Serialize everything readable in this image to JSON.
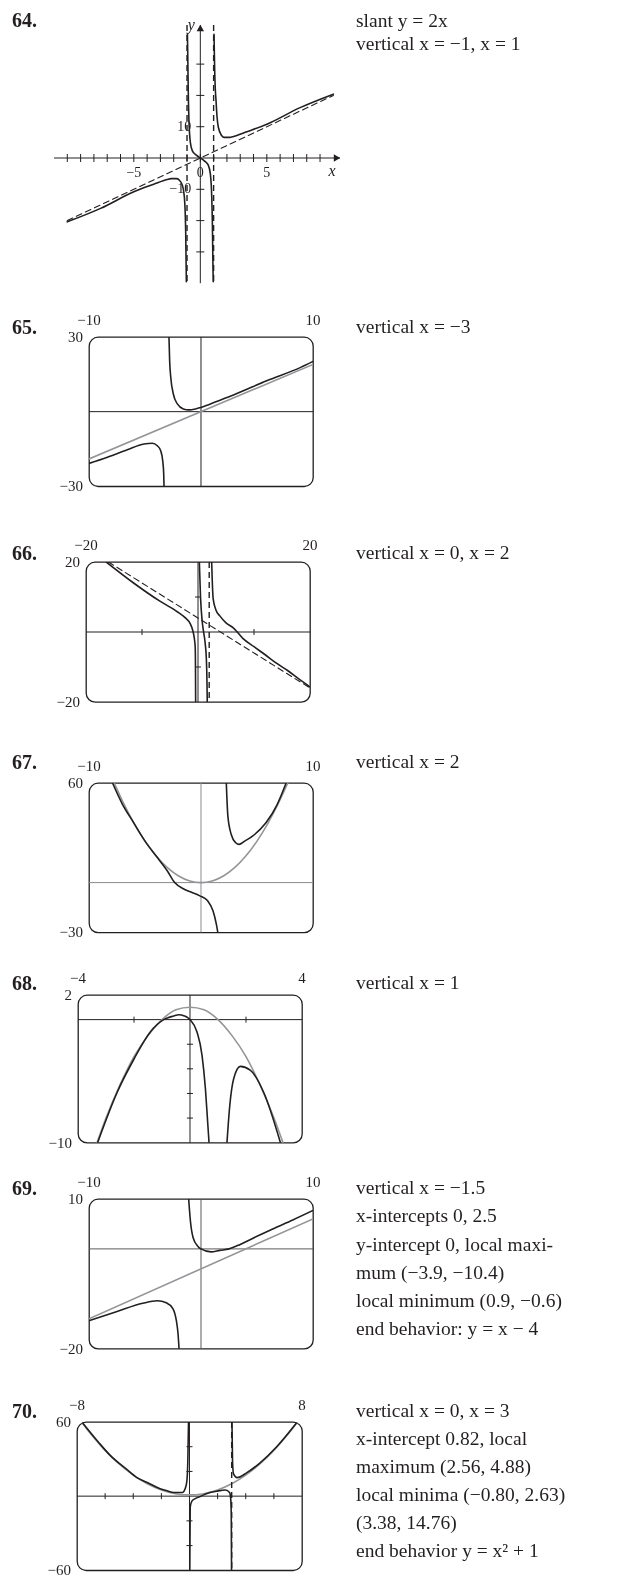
{
  "chart_data": [
    {
      "type": "line",
      "title": "64.",
      "xlabel": "x",
      "ylabel": "y",
      "annotations": [
        "slant y = 2x",
        "vertical x = −1, x = 1"
      ],
      "xlim": [
        -11,
        10.5
      ],
      "ylim": [
        -40,
        42.5
      ],
      "xticks": [
        {
          "value": -10,
          "label": null
        },
        {
          "value": -9,
          "label": null
        },
        {
          "value": -8,
          "label": null
        },
        {
          "value": -7,
          "label": null
        },
        {
          "value": -6,
          "label": null
        },
        -5,
        {
          "value": -4,
          "label": null
        },
        {
          "value": -3,
          "label": null
        },
        {
          "value": -2,
          "label": null
        },
        {
          "value": -1,
          "label": null
        },
        0,
        {
          "value": 1,
          "label": null
        },
        {
          "value": 2,
          "label": null
        },
        {
          "value": 3,
          "label": null
        },
        {
          "value": 4,
          "label": null
        },
        5,
        {
          "value": 6,
          "label": null
        },
        {
          "value": 7,
          "label": null
        },
        {
          "value": 8,
          "label": null
        },
        {
          "value": 9,
          "label": null
        }
      ],
      "yticks": [
        {
          "value": -30,
          "label": null
        },
        {
          "value": -20,
          "label": null
        },
        -10,
        10,
        {
          "value": 20,
          "label": null
        },
        {
          "value": 30,
          "label": null
        }
      ],
      "series": [
        {
          "color": "#231f20",
          "line_style": "dashed",
          "x": [
            -10,
            10
          ],
          "values": [
            -20,
            20
          ]
        },
        {
          "color": "#231f20",
          "x": [
            -10,
            -7.5,
            -5,
            -3.5,
            -2.5,
            -2.2,
            -1.8,
            -1.6,
            -1.35,
            -1.2,
            -1.1,
            -1.05
          ],
          "values": [
            -20.4,
            -16.1,
            -10.8,
            -8.4,
            -6.9,
            -6.6,
            -6.6,
            -7,
            -8.7,
            -12.4,
            -23.5,
            -39.5
          ]
        },
        {
          "color": "#231f20",
          "x": [
            -0.97,
            -0.95,
            -0.93,
            -0.91,
            -0.89,
            -0.86,
            -0.82,
            -0.75,
            -0.6,
            -0.3,
            0,
            0.3,
            0.6,
            0.75,
            0.82,
            0.86,
            0.89,
            0.91,
            0.93,
            0.95,
            0.97
          ],
          "values": [
            39.5,
            34.5,
            28.5,
            22,
            17.5,
            12.5,
            8.5,
            5,
            2.3,
            0.9,
            0,
            -0.9,
            -2.3,
            -5,
            -8.5,
            -12.5,
            -17.5,
            -22,
            -28.5,
            -34.5,
            -39.5
          ]
        },
        {
          "color": "#231f20",
          "x": [
            1.03,
            1.05,
            1.08,
            1.12,
            1.18,
            1.25,
            1.35,
            1.6,
            1.8,
            2.2,
            2.5,
            3.5,
            5,
            7.5,
            10
          ],
          "values": [
            39.5,
            34.5,
            28,
            22.5,
            18.4,
            13.5,
            9.9,
            7.2,
            6.6,
            6.6,
            6.9,
            8.4,
            10.8,
            16.1,
            20.4
          ]
        }
      ],
      "ref_lines": [
        {
          "axis": "x",
          "value": -1,
          "line_style": "dashed",
          "color": "#231f20"
        },
        {
          "axis": "x",
          "value": 1,
          "line_style": "dashed",
          "color": "#231f20"
        }
      ]
    },
    {
      "type": "line",
      "title": "65.",
      "annotations": [
        "vertical x = −3"
      ],
      "xlim": [
        -10,
        10
      ],
      "ylim": [
        -30,
        30
      ],
      "xticks": [
        -10,
        10
      ],
      "yticks": [
        -30,
        30
      ],
      "series": [
        {
          "color": "#939598",
          "x": [
            -10,
            10
          ],
          "values": [
            -19,
            19
          ]
        },
        {
          "color": "#231f20",
          "x": [
            -2.86,
            -2.8,
            -2.7,
            -2.47,
            -2.11,
            -1.58,
            -1.07,
            -0.48,
            0,
            1.46,
            2.95,
            5.92,
            8.9,
            10
          ],
          "values": [
            30,
            20.5,
            13.8,
            7.1,
            3.1,
            1.1,
            0.7,
            1.1,
            1.7,
            4.2,
            6.8,
            12.5,
            17.8,
            20.2
          ]
        },
        {
          "color": "#231f20",
          "x": [
            -10,
            -8.36,
            -6.58,
            -5.09,
            -4.35,
            -3.9,
            -3.6,
            -3.42,
            -3.33,
            -3.3
          ],
          "values": [
            -20.8,
            -18.3,
            -15.3,
            -13,
            -12.7,
            -13.7,
            -15.7,
            -19.7,
            -25,
            -30
          ]
        }
      ]
    },
    {
      "type": "line",
      "title": "66.",
      "annotations": [
        "vertical x = 0, x = 2"
      ],
      "xlim": [
        -20,
        20
      ],
      "ylim": [
        -20,
        20
      ],
      "xticks": [
        -20,
        {
          "value": -10,
          "label": null
        },
        {
          "value": 10,
          "label": null
        },
        20
      ],
      "yticks": [
        -20,
        {
          "value": -10,
          "label": null
        },
        {
          "value": 10,
          "label": null
        },
        20
      ],
      "series": [
        {
          "color": "#231f20",
          "line_style": "dashed",
          "x": [
            -16,
            20
          ],
          "values": [
            20,
            -16
          ]
        },
        {
          "color": "#231f20",
          "x": [
            -16.4,
            -11.5,
            -6.8,
            -3.8,
            -2.3,
            -1.4,
            -0.95,
            -0.65,
            -0.5,
            -0.45,
            -0.42
          ],
          "values": [
            20,
            14,
            8.8,
            5.9,
            4.1,
            2.4,
            0.5,
            -1.9,
            -4.3,
            -10,
            -20
          ]
        },
        {
          "color": "#231f20",
          "x": [
            0.24,
            0.45,
            0.75,
            1,
            1.3,
            1.5,
            1.6,
            1.65
          ],
          "values": [
            20,
            10,
            3,
            0,
            -3.5,
            -8,
            -14,
            -20
          ]
        },
        {
          "color": "#231f20",
          "x": [
            2.44,
            2.7,
            3.2,
            3.9,
            5,
            6.3,
            8,
            10,
            12,
            14,
            16,
            18,
            20
          ],
          "values": [
            20,
            9.6,
            6.3,
            4.6,
            2.6,
            1.2,
            -1.8,
            -4.2,
            -6.5,
            -8.9,
            -11,
            -13.4,
            -15.7
          ]
        }
      ],
      "ref_lines": [
        {
          "axis": "x",
          "value": 2,
          "line_style": "dashed",
          "color": "#231f20"
        }
      ]
    },
    {
      "type": "line",
      "title": "67.",
      "annotations": [
        "vertical x = 2"
      ],
      "xlim": [
        -10,
        10
      ],
      "ylim": [
        -30,
        60
      ],
      "xticks": [
        -10,
        10
      ],
      "yticks": [
        -30,
        60
      ],
      "series": [
        {
          "color": "#939598",
          "x": [
            -7.75,
            -7,
            -6,
            -5,
            -4,
            -3,
            -2,
            -1,
            0,
            1,
            2,
            3,
            4,
            5,
            6,
            7,
            7.75
          ],
          "values": [
            60,
            49,
            36,
            25,
            16,
            9,
            4,
            1,
            0,
            1,
            4,
            9,
            16,
            25,
            36,
            49,
            60
          ]
        },
        {
          "color": "#231f20",
          "x": [
            -7.9,
            -7,
            -6.1,
            -5,
            -4,
            -3,
            -2.35,
            -1.5,
            -0.8,
            -0.1,
            0.6,
            1.07,
            1.37,
            1.5
          ],
          "values": [
            60,
            47,
            37,
            25,
            16,
            7,
            0,
            -4,
            -6,
            -8,
            -11,
            -17,
            -25,
            -30
          ]
        },
        {
          "color": "#231f20",
          "x": [
            2.26,
            2.4,
            2.7,
            3.1,
            3.4,
            3.9,
            4.6,
            5.8,
            6.8,
            7.6
          ],
          "values": [
            60,
            40,
            29,
            24,
            23,
            25,
            28,
            36,
            47,
            60
          ]
        }
      ]
    },
    {
      "type": "line",
      "title": "68.",
      "annotations": [
        "vertical x = 1"
      ],
      "xlim": [
        -4,
        4
      ],
      "ylim": [
        -10,
        2
      ],
      "xticks": [
        -4,
        {
          "value": -2,
          "label": null
        },
        {
          "value": 2,
          "label": null
        },
        4
      ],
      "yticks": [
        -10,
        {
          "value": -8,
          "label": null
        },
        {
          "value": -6,
          "label": null
        },
        {
          "value": -4,
          "label": null
        },
        {
          "value": -2,
          "label": null
        },
        2
      ],
      "series": [
        {
          "color": "#939598",
          "x": [
            -3.32,
            -3,
            -2.5,
            -2,
            -1.5,
            -1,
            -0.5,
            0,
            0.5,
            1,
            1.5,
            2,
            2.5,
            3,
            3.32
          ],
          "values": [
            -10,
            -8,
            -5.3,
            -3,
            -1.3,
            0,
            0.8,
            1,
            0.8,
            0,
            -1.3,
            -3,
            -5.3,
            -8,
            -10
          ]
        },
        {
          "color": "#231f20",
          "x": [
            -3.3,
            -2.6,
            -2,
            -1.42,
            -0.94,
            -0.58,
            -0.4,
            -0.2,
            0,
            0.25,
            0.43,
            0.55,
            0.63,
            0.68
          ],
          "values": [
            -10,
            -5.9,
            -3.2,
            -1,
            0,
            0.3,
            0.4,
            0.3,
            0,
            -1,
            -2.9,
            -5.6,
            -8.3,
            -10
          ]
        },
        {
          "color": "#231f20",
          "x": [
            1.32,
            1.42,
            1.56,
            1.8,
            2.15,
            2.63,
            3.23
          ],
          "values": [
            -10,
            -7,
            -4.8,
            -3.8,
            -4.1,
            -5.9,
            -10
          ]
        }
      ]
    },
    {
      "type": "line",
      "title": "69.",
      "annotations": [
        "vertical x = −1.5",
        "x-intercepts 0, 2.5",
        "y-intercept 0, local maxi-",
        "mum (−3.9, −10.4)",
        "local minimum (0.9, −0.6)",
        "end behavior: y = x − 4"
      ],
      "xlim": [
        -10,
        10
      ],
      "ylim": [
        -20,
        10
      ],
      "xticks": [
        -10,
        10
      ],
      "yticks": [
        -20,
        10
      ],
      "series": [
        {
          "color": "#939598",
          "x": [
            -10,
            10
          ],
          "values": [
            -14,
            6
          ]
        },
        {
          "color": "#231f20",
          "x": [
            -1.1,
            -0.95,
            -0.71,
            -0.27,
            0,
            0.9,
            1.67,
            2.5,
            3.5,
            4.6,
            6.4,
            8.2,
            10
          ],
          "values": [
            10,
            5.7,
            2.3,
            0.5,
            0,
            -0.6,
            -0.3,
            0,
            0.9,
            2.1,
            4,
            5.8,
            7.7
          ]
        },
        {
          "color": "#231f20",
          "x": [
            -10,
            -7.56,
            -5.2,
            -3.9,
            -3.1,
            -2.5,
            -2.2,
            -2.05,
            -1.96
          ],
          "values": [
            -14.4,
            -12.6,
            -10.9,
            -10.4,
            -10.8,
            -12,
            -14.4,
            -17,
            -20
          ]
        }
      ]
    },
    {
      "type": "line",
      "title": "70.",
      "annotations": [
        "vertical x = 0, x = 3",
        "x-intercept 0.82, local",
        "maximum (2.56, 4.88)",
        "local minima (−0.80, 2.63)",
        "(3.38, 14.76)",
        "end behavior y = x² + 1"
      ],
      "xlim": [
        -8,
        8
      ],
      "ylim": [
        -60,
        60
      ],
      "xticks": [
        -8,
        {
          "value": -6,
          "label": null
        },
        {
          "value": -4,
          "label": null
        },
        {
          "value": -2,
          "label": null
        },
        {
          "value": 2,
          "label": null
        },
        {
          "value": 4,
          "label": null
        },
        {
          "value": 6,
          "label": null
        },
        8
      ],
      "yticks": [
        -60,
        {
          "value": -40,
          "label": null
        },
        {
          "value": -20,
          "label": null
        },
        {
          "value": 20,
          "label": null
        },
        {
          "value": 40,
          "label": null
        },
        60
      ],
      "series": [
        {
          "color": "#939598",
          "x": [
            -7.68,
            -7,
            -6,
            -5,
            -4,
            -3,
            -2,
            -1,
            0,
            1,
            2,
            3,
            4,
            5,
            6,
            7,
            7.68
          ],
          "values": [
            60,
            50,
            37,
            26,
            17,
            10,
            5,
            2,
            1,
            2,
            5,
            10,
            17,
            26,
            37,
            50,
            60
          ]
        },
        {
          "color": "#231f20",
          "x": [
            -7.65,
            -6.5,
            -5.64,
            -4.5,
            -3.74,
            -3,
            -2.09,
            -1.5,
            -1.14,
            -0.8,
            -0.5,
            -0.31,
            -0.19,
            -0.12,
            -0.07
          ],
          "values": [
            60,
            44,
            33,
            22,
            15,
            11,
            6,
            4,
            3,
            3,
            3,
            6,
            12,
            28,
            60
          ]
        },
        {
          "color": "#231f20",
          "x": [
            0.02,
            0.05,
            0.17,
            0.4,
            0.82,
            1.2,
            1.94,
            2.56,
            2.85,
            2.93,
            2.97,
            2.99
          ],
          "values": [
            -60,
            -9,
            -4,
            -2,
            0,
            2,
            4,
            5,
            3,
            -2,
            -15,
            -60
          ]
        },
        {
          "color": "#231f20",
          "x": [
            3.02,
            3.06,
            3.13,
            3.38,
            4.08,
            5.02,
            6.2,
            7.66
          ],
          "values": [
            60,
            28,
            18,
            15,
            19,
            27,
            40,
            60
          ]
        }
      ],
      "ref_lines": [
        {
          "axis": "x",
          "value": 3,
          "line_style": "dashed",
          "color": "#231f20"
        }
      ]
    }
  ]
}
